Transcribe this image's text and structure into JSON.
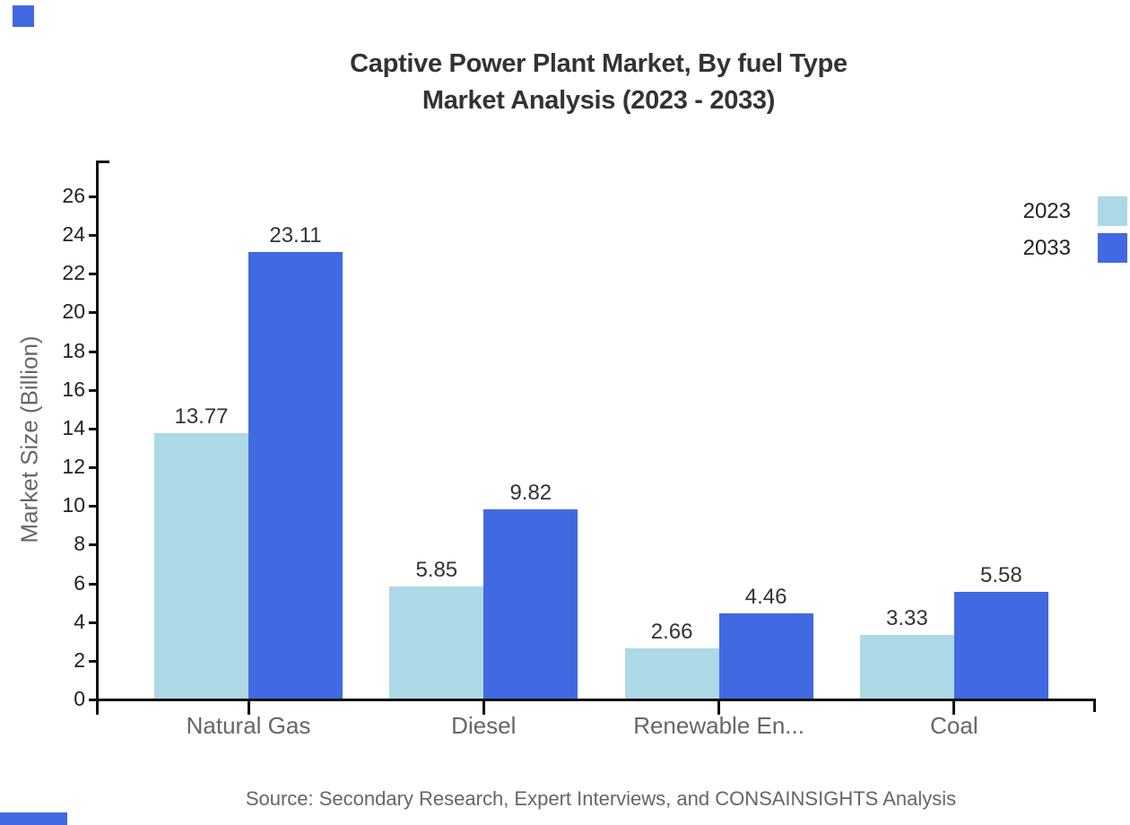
{
  "title": {
    "line1": "Captive Power Plant Market, By fuel Type",
    "line2": "Market Analysis (2023 - 2033)"
  },
  "source_note": "Source: Secondary Research, Expert Interviews, and CONSAINSIGHTS Analysis",
  "colors": {
    "series_2023": "#ADD8E6",
    "series_2033": "#4169E1",
    "title_text": "#333333",
    "axis": "#111111",
    "muted_text": "#666666",
    "tick_text": "#222222",
    "brand": "#4169E1",
    "background": "#FFFFFF"
  },
  "chart_data": {
    "type": "bar",
    "title": "Captive Power Plant Market, By fuel Type — Market Analysis (2023 - 2033)",
    "categories": [
      "Natural Gas",
      "Diesel",
      "Renewable En...",
      "Coal"
    ],
    "series": [
      {
        "name": "2023",
        "color": "#ADD8E6",
        "values": [
          13.77,
          5.85,
          2.66,
          3.33
        ]
      },
      {
        "name": "2033",
        "color": "#4169E1",
        "values": [
          23.11,
          9.82,
          4.46,
          5.58
        ]
      }
    ],
    "xlabel": "",
    "ylabel": "Market Size (Billion)",
    "ylim": [
      0,
      28
    ],
    "yticks": [
      0,
      2,
      4,
      6,
      8,
      10,
      12,
      14,
      16,
      18,
      20,
      22,
      24,
      26
    ],
    "grid": false,
    "legend_position": "top-right",
    "value_labels": true,
    "value_labels_decimals": 2
  }
}
